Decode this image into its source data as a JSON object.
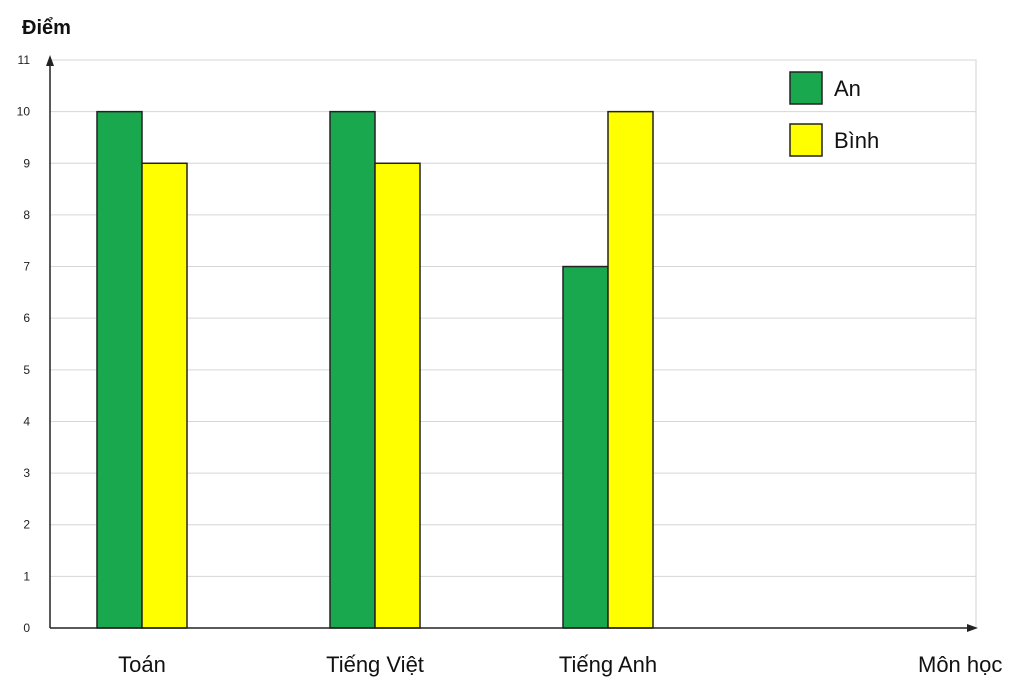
{
  "chart_data": {
    "type": "bar",
    "ylabel": "Điểm",
    "xlabel": "Môn học",
    "categories": [
      "Toán",
      "Tiếng Việt",
      "Tiếng Anh"
    ],
    "series": [
      {
        "name": "An",
        "values": [
          10,
          10,
          7
        ],
        "color": "#1aa84f"
      },
      {
        "name": "Bình",
        "values": [
          9,
          9,
          10
        ],
        "color": "#ffff00"
      }
    ],
    "ylim": [
      0,
      11
    ],
    "yticks": [
      0,
      1,
      2,
      3,
      4,
      5,
      6,
      7,
      8,
      9,
      10,
      11
    ],
    "grid": true,
    "legend": "top-right"
  }
}
